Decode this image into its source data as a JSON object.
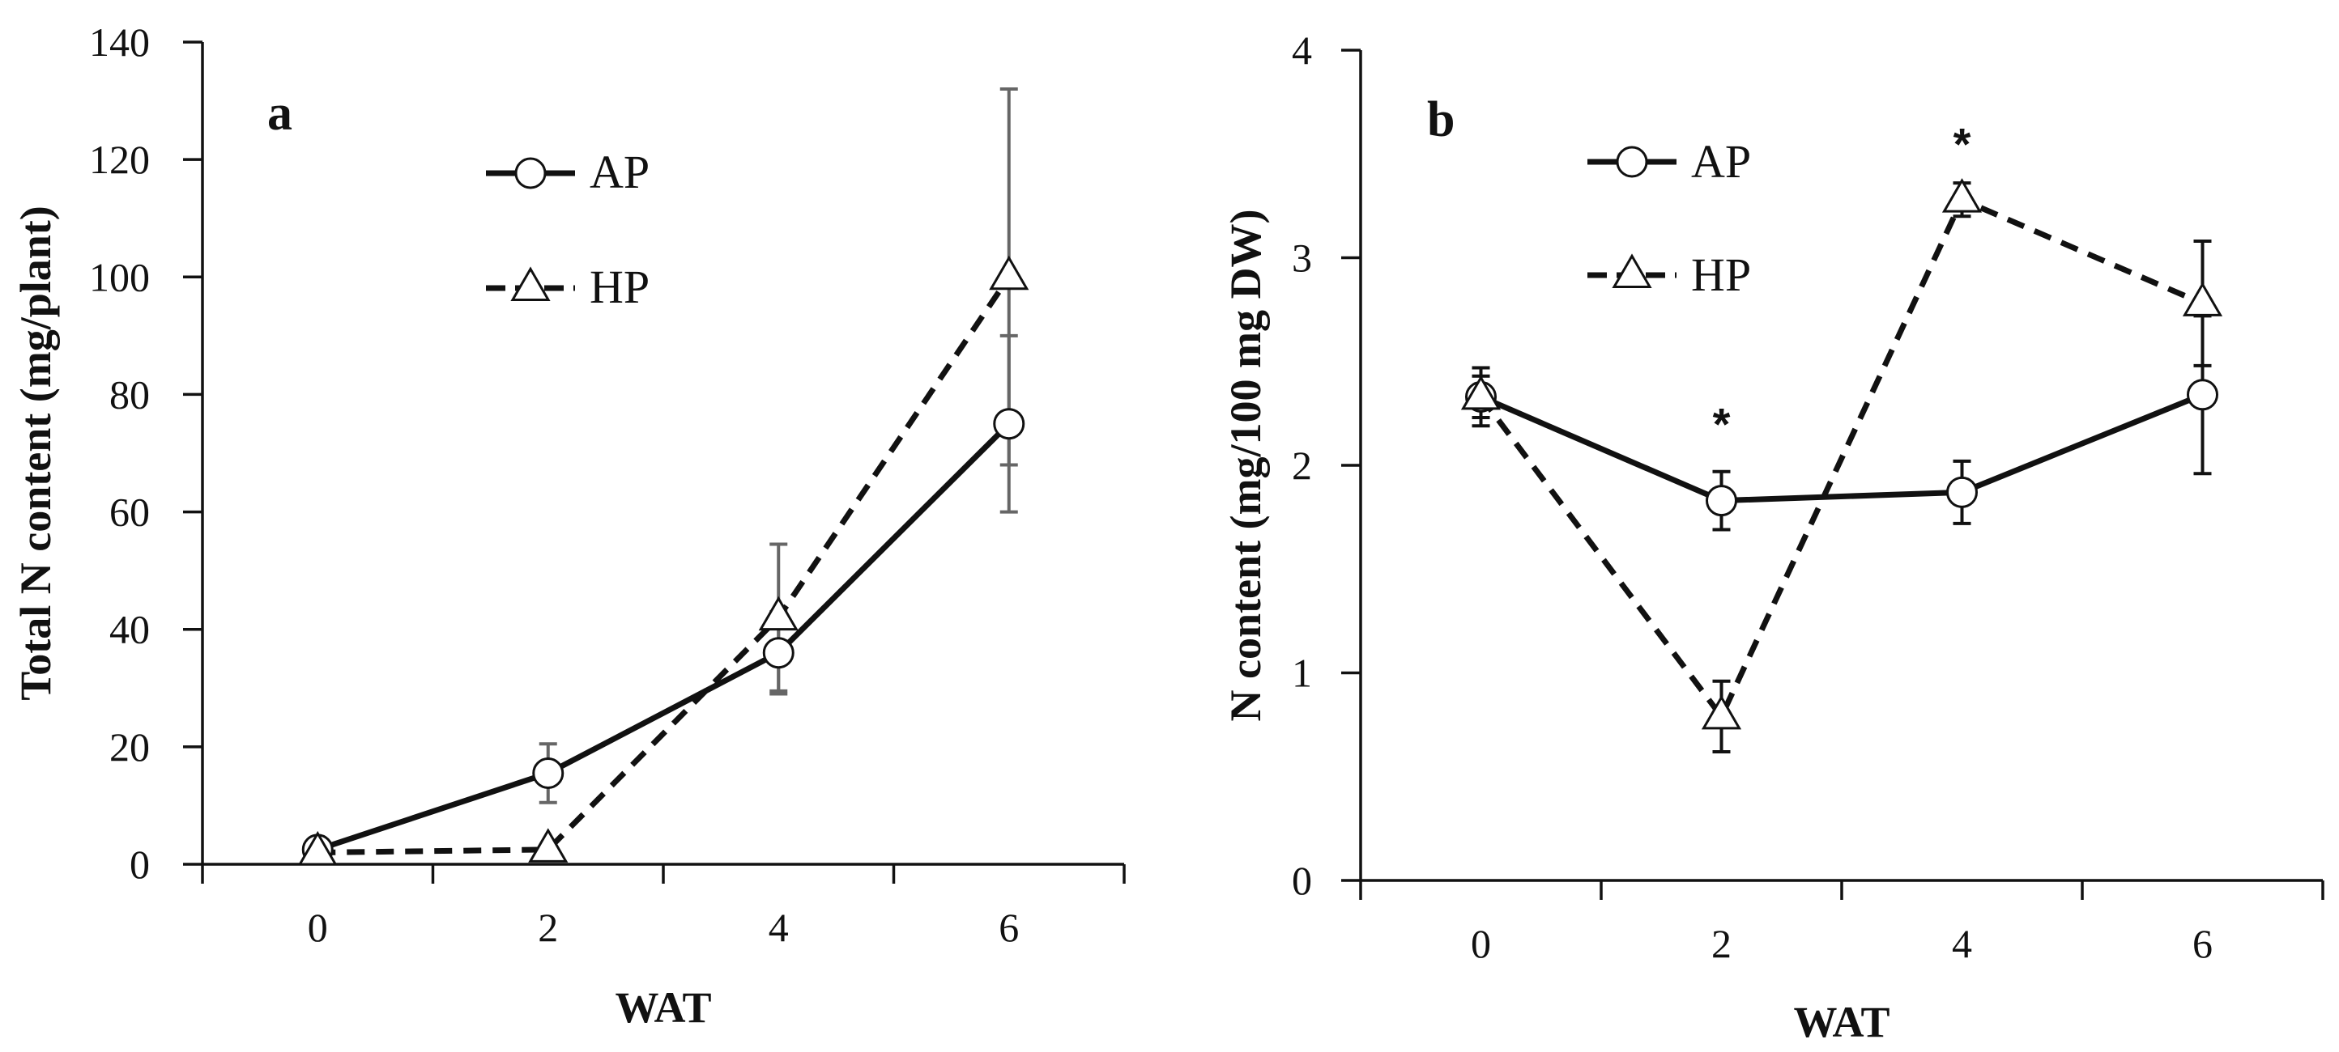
{
  "chart_data": [
    {
      "type": "line",
      "panel_label": "a",
      "title": "",
      "xlabel": "WAT",
      "ylabel": "Total N content (mg/plant)",
      "x": [
        0,
        2,
        4,
        6
      ],
      "xticks": [
        "0",
        "2",
        "4",
        "6"
      ],
      "xlim": [
        -1,
        7
      ],
      "yticks": [
        "0",
        "20",
        "40",
        "60",
        "80",
        "100",
        "120",
        "140"
      ],
      "ylim": [
        0,
        140
      ],
      "grid": false,
      "legend": "top-center",
      "error_bar_color": "#666666",
      "series": [
        {
          "name": "AP",
          "marker": "circle",
          "line": "solid",
          "values": [
            2.5,
            15.5,
            36,
            75
          ],
          "errors": [
            0.8,
            5,
            7,
            15
          ]
        },
        {
          "name": "HP",
          "marker": "triangle",
          "line": "dashed",
          "values": [
            2,
            2.5,
            42,
            100
          ],
          "errors": [
            0.5,
            0.5,
            12.5,
            32
          ]
        }
      ],
      "annotations": []
    },
    {
      "type": "line",
      "panel_label": "b",
      "title": "",
      "xlabel": "WAT",
      "ylabel": "N content (mg/100 mg DW)",
      "x": [
        0,
        2,
        4,
        6
      ],
      "xticks": [
        "0",
        "2",
        "4",
        "6"
      ],
      "xlim": [
        -1,
        7
      ],
      "yticks": [
        "0",
        "1",
        "2",
        "3",
        "4"
      ],
      "ylim": [
        0,
        4
      ],
      "grid": false,
      "legend": "top-left",
      "error_bar_color": "#111111",
      "series": [
        {
          "name": "AP",
          "marker": "circle",
          "line": "solid",
          "values": [
            2.33,
            1.83,
            1.87,
            2.34
          ],
          "errors": [
            0.14,
            0.14,
            0.15,
            0.38
          ]
        },
        {
          "name": "HP",
          "marker": "triangle",
          "line": "dashed",
          "values": [
            2.33,
            0.79,
            3.28,
            2.78
          ],
          "errors": [
            0.1,
            0.17,
            0.08,
            0.3
          ]
        }
      ],
      "annotations": [
        {
          "text": "*",
          "x": 2,
          "y": 2.27
        },
        {
          "text": "*",
          "x": 4,
          "y": 3.62
        }
      ]
    }
  ]
}
